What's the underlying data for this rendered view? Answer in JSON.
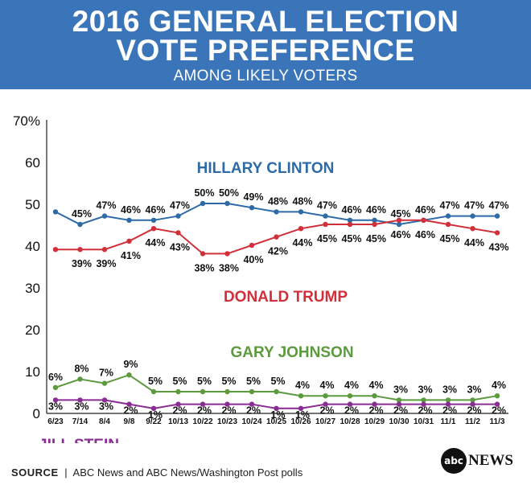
{
  "header": {
    "title_line1": "2016 GENERAL ELECTION",
    "title_line2": "VOTE PREFERENCE",
    "subtitle": "AMONG LIKELY VOTERS"
  },
  "footer": {
    "source_label": "SOURCE",
    "source_sep": "|",
    "source_text": "ABC News and ABC News/Washington Post polls",
    "logo_mark": "abc",
    "logo_text": "NEWS"
  },
  "colors": {
    "header_bg": "#3a74b9",
    "clinton": "#2d6aa6",
    "trump": "#d1303a",
    "johnson": "#5c9a3e",
    "stein": "#8a2c93"
  },
  "chart_data": {
    "type": "line",
    "title": "2016 GENERAL ELECTION VOTE PREFERENCE",
    "subtitle": "AMONG LIKELY VOTERS",
    "x": [
      "6/23",
      "7/14",
      "8/4",
      "9/8",
      "9/22",
      "10/13",
      "10/22",
      "10/23",
      "10/24",
      "10/25",
      "10/26",
      "10/27",
      "10/28",
      "10/29",
      "10/30",
      "10/31",
      "11/1",
      "11/2",
      "11/3"
    ],
    "ylim": [
      0,
      70
    ],
    "yticks": [
      "0",
      "10",
      "20",
      "30",
      "40",
      "50",
      "60",
      "70%"
    ],
    "grid": false,
    "series": [
      {
        "name": "HILLARY CLINTON",
        "color": "#2d6aa6",
        "values": [
          48,
          45,
          47,
          46,
          46,
          47,
          50,
          50,
          49,
          48,
          48,
          47,
          46,
          46,
          45,
          46,
          47,
          47,
          47
        ],
        "labels": [
          "",
          "45%",
          "47%",
          "46%",
          "46%",
          "47%",
          "50%",
          "50%",
          "49%",
          "48%",
          "48%",
          "47%",
          "46%",
          "46%",
          "45%",
          "46%",
          "47%",
          "47%",
          "47%"
        ]
      },
      {
        "name": "DONALD TRUMP",
        "color": "#d1303a",
        "values": [
          39,
          39,
          39,
          41,
          44,
          43,
          38,
          38,
          40,
          42,
          44,
          45,
          45,
          45,
          46,
          46,
          45,
          44,
          43
        ],
        "labels": [
          "",
          "39%",
          "39%",
          "41%",
          "44%",
          "43%",
          "38%",
          "38%",
          "40%",
          "42%",
          "44%",
          "45%",
          "45%",
          "45%",
          "46%",
          "46%",
          "45%",
          "44%",
          "43%"
        ]
      },
      {
        "name": "GARY JOHNSON",
        "color": "#5c9a3e",
        "values": [
          6,
          8,
          7,
          9,
          5,
          5,
          5,
          5,
          5,
          5,
          4,
          4,
          4,
          4,
          3,
          3,
          3,
          3,
          4
        ],
        "labels": [
          "6%",
          "8%",
          "7%",
          "9%",
          "5%",
          "5%",
          "5%",
          "5%",
          "5%",
          "5%",
          "4%",
          "4%",
          "4%",
          "4%",
          "3%",
          "3%",
          "3%",
          "3%",
          "4%"
        ]
      },
      {
        "name": "JILL STEIN",
        "color": "#8a2c93",
        "values": [
          3,
          3,
          3,
          2,
          1,
          2,
          2,
          2,
          2,
          1,
          1,
          2,
          2,
          2,
          2,
          2,
          2,
          2,
          2
        ],
        "labels": [
          "3%",
          "3%",
          "3%",
          "2%",
          "1%",
          "2%",
          "2%",
          "2%",
          "2%",
          "1%",
          "1%",
          "2%",
          "2%",
          "2%",
          "2%",
          "2%",
          "2%",
          "2%",
          "2%"
        ]
      }
    ]
  }
}
